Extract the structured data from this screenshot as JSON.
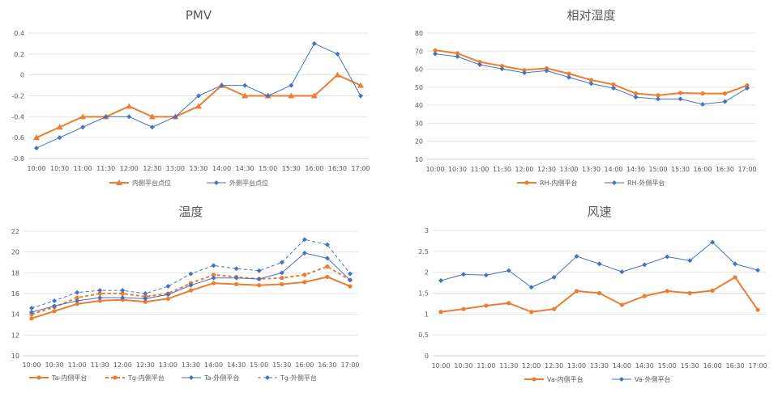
{
  "colors": {
    "orange": "#ED7D31",
    "blue": "#4472C4"
  },
  "chart_data": [
    {
      "id": "pmv",
      "type": "line",
      "title": "PMV",
      "categories": [
        "10:00",
        "10:30",
        "11:00",
        "11:30",
        "12:00",
        "12:30",
        "13:00",
        "13:30",
        "14:00",
        "14:30",
        "15:00",
        "15:30",
        "16:00",
        "16:30",
        "17:00"
      ],
      "ylim": [
        -0.8,
        0.4
      ],
      "ytick_step": 0.2,
      "ytick_labels": [
        "0.4",
        "0.2",
        "0",
        "-0.2",
        "-0.4",
        "-0.6",
        "-0.8"
      ],
      "grid": true,
      "legend": "bottom",
      "series": [
        {
          "name": "内侧平台点位",
          "color": "#ED7D31",
          "marker": "triangle",
          "style": "solid",
          "values": [
            -0.6,
            -0.5,
            -0.4,
            -0.4,
            -0.3,
            -0.4,
            -0.4,
            -0.3,
            -0.1,
            -0.2,
            -0.2,
            -0.2,
            -0.2,
            0.0,
            -0.1
          ]
        },
        {
          "name": "外侧平台点位",
          "color": "#4472C4",
          "marker": "diamond",
          "style": "solid",
          "values": [
            -0.7,
            -0.6,
            -0.5,
            -0.4,
            -0.4,
            -0.5,
            -0.4,
            -0.2,
            -0.1,
            -0.1,
            -0.2,
            -0.1,
            0.3,
            0.2,
            -0.2
          ]
        }
      ]
    },
    {
      "id": "rh",
      "type": "line",
      "title": "相对湿度",
      "categories": [
        "10:00",
        "10:30",
        "11:00",
        "11:30",
        "12:00",
        "12:30",
        "13:00",
        "13:30",
        "14:00",
        "14:30",
        "15:00",
        "15:30",
        "16:00",
        "16:30",
        "17:00"
      ],
      "ylim": [
        10,
        80
      ],
      "ytick_step": 10,
      "ytick_labels": [
        "80",
        "70",
        "60",
        "50",
        "40",
        "30",
        "20",
        "10"
      ],
      "grid": true,
      "legend": "bottom",
      "series": [
        {
          "name": "RH-内侧平台",
          "color": "#ED7D31",
          "marker": "circle",
          "style": "solid",
          "values": [
            70.5,
            68.8,
            64.0,
            61.8,
            59.5,
            60.5,
            57.5,
            54.0,
            51.5,
            46.5,
            45.5,
            46.8,
            46.5,
            46.5,
            51.0
          ]
        },
        {
          "name": "RH-外侧平台",
          "color": "#4472C4",
          "marker": "diamond",
          "style": "solid",
          "values": [
            68.5,
            67.0,
            62.5,
            60.2,
            58.0,
            59.2,
            55.5,
            52.0,
            49.5,
            44.5,
            43.5,
            43.5,
            40.5,
            42.0,
            49.5
          ]
        }
      ]
    },
    {
      "id": "temp",
      "type": "line",
      "title": "温度",
      "categories": [
        "10:00",
        "10:30",
        "11:00",
        "11:30",
        "12:00",
        "12:30",
        "13:00",
        "13:30",
        "14:00",
        "14:30",
        "15:00",
        "15:30",
        "16:00",
        "16:30",
        "17:00"
      ],
      "ylim": [
        10,
        22
      ],
      "ytick_step": 2,
      "ytick_labels": [
        "22",
        "20",
        "18",
        "16",
        "14",
        "12",
        "10"
      ],
      "grid": true,
      "legend": "bottom",
      "series": [
        {
          "name": "Ta-内侧平台",
          "color": "#ED7D31",
          "marker": "circle",
          "style": "solid",
          "values": [
            13.6,
            14.3,
            15.0,
            15.3,
            15.4,
            15.2,
            15.5,
            16.3,
            17.0,
            16.9,
            16.8,
            16.9,
            17.1,
            17.6,
            16.7
          ]
        },
        {
          "name": "Tg-内侧平台",
          "color": "#ED7D31",
          "marker": "circle",
          "style": "dashed",
          "values": [
            14.0,
            14.7,
            15.6,
            16.0,
            16.0,
            15.7,
            16.0,
            17.0,
            17.8,
            17.6,
            17.4,
            17.5,
            17.8,
            18.6,
            17.3
          ]
        },
        {
          "name": "Ta-外侧平台",
          "color": "#4472C4",
          "marker": "diamond",
          "style": "solid",
          "values": [
            14.2,
            14.8,
            15.3,
            15.6,
            15.6,
            15.5,
            15.9,
            16.8,
            17.5,
            17.5,
            17.4,
            18.0,
            19.9,
            19.4,
            17.3
          ]
        },
        {
          "name": "Tg-外侧平台",
          "color": "#4472C4",
          "marker": "diamond",
          "style": "dashed",
          "values": [
            14.6,
            15.3,
            16.1,
            16.3,
            16.3,
            16.0,
            16.7,
            17.9,
            18.7,
            18.4,
            18.2,
            19.0,
            21.2,
            20.7,
            17.9
          ]
        }
      ]
    },
    {
      "id": "wind",
      "type": "line",
      "title": "风速",
      "categories": [
        "10:00",
        "10:30",
        "11:00",
        "11:30",
        "12:00",
        "12:30",
        "13:00",
        "13:30",
        "14:00",
        "14:30",
        "15:00",
        "15:30",
        "16:00",
        "16:30",
        "17:00"
      ],
      "ylim": [
        0,
        3
      ],
      "ytick_step": 0.5,
      "ytick_labels": [
        "3",
        "2.5",
        "2",
        "1.5",
        "1",
        "0.5",
        "0"
      ],
      "grid": true,
      "legend": "bottom",
      "series": [
        {
          "name": "Va-内侧平台",
          "color": "#ED7D31",
          "marker": "circle",
          "style": "solid",
          "values": [
            1.05,
            1.12,
            1.2,
            1.26,
            1.05,
            1.12,
            1.55,
            1.5,
            1.22,
            1.43,
            1.55,
            1.5,
            1.56,
            1.88,
            1.1
          ]
        },
        {
          "name": "Va-外侧平台",
          "color": "#4472C4",
          "marker": "diamond",
          "style": "solid",
          "values": [
            1.8,
            1.95,
            1.93,
            2.04,
            1.64,
            1.88,
            2.38,
            2.2,
            2.01,
            2.18,
            2.37,
            2.28,
            2.72,
            2.2,
            2.05
          ]
        }
      ]
    }
  ]
}
